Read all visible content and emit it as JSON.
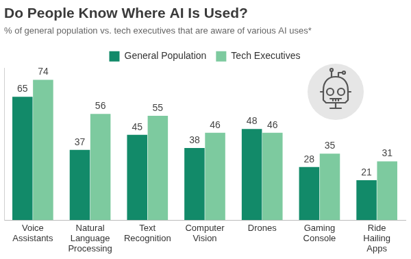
{
  "chart_data": {
    "type": "bar",
    "title": "Do People Know Where AI Is Used?",
    "subtitle": "% of general population vs. tech executives that are aware of various AI uses*",
    "categories": [
      "Voice Assistants",
      "Natural Language Processing",
      "Text Recognition",
      "Computer Vision",
      "Drones",
      "Gaming Console",
      "Ride Hailing Apps"
    ],
    "series": [
      {
        "name": "General Population",
        "color": "#128a69",
        "values": [
          65,
          37,
          45,
          38,
          48,
          28,
          21
        ]
      },
      {
        "name": "Tech Executives",
        "color": "#7dca9f",
        "values": [
          74,
          56,
          55,
          46,
          46,
          35,
          31
        ]
      }
    ],
    "ylim": [
      0,
      80
    ],
    "grid": false,
    "legend": "top",
    "data_labels": true,
    "tick_labels": "x"
  }
}
